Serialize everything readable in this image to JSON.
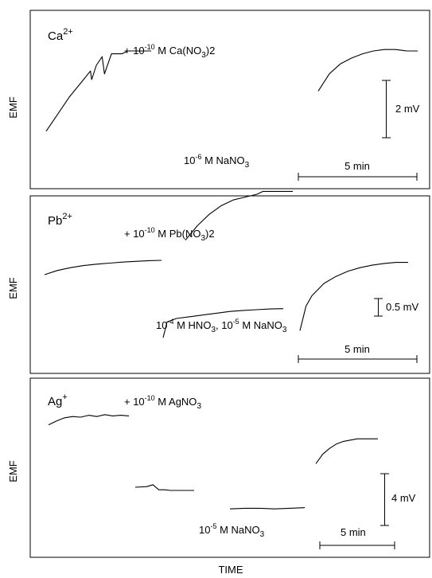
{
  "figure": {
    "x_axis_label": "TIME",
    "y_axis_label": "EMF"
  },
  "chart_data": [
    {
      "type": "line",
      "ion": {
        "base": "Ca",
        "sup": "2+"
      },
      "annotation_top": {
        "prefix": "+ 10",
        "exp": "-10",
        "middle": " M Ca(NO",
        "sub": "3",
        "suffix": ")2"
      },
      "annotation_bottom": {
        "prefix": "10",
        "exp": "-6",
        "middle": " M NaNO",
        "sub": "3",
        "suffix": ""
      },
      "scalebar_emf": "2 mV",
      "scalebar_time": "5 min",
      "series": [
        {
          "x": [
            0.0,
            1.0,
            2.0,
            3.0,
            3.8,
            3.9,
            4.3,
            4.8,
            5.0,
            5.6,
            6.5,
            7.0,
            8.0,
            9.0
          ],
          "y": [
            0.2,
            0.8,
            1.4,
            1.9,
            2.3,
            2.0,
            2.5,
            2.8,
            2.2,
            2.9,
            2.9,
            3.0,
            3.0,
            3.0
          ]
        },
        {
          "x": [
            0,
            1,
            2,
            3,
            4,
            5,
            6,
            6.5,
            7,
            8,
            9
          ],
          "y": [
            -3.6,
            -3.1,
            -2.7,
            -2.4,
            -2.2,
            -2.1,
            -2.0,
            -1.9,
            -1.9,
            -1.9,
            -1.9
          ]
        },
        {
          "x": [
            0,
            1,
            2,
            3,
            4,
            5,
            6,
            7,
            8,
            9
          ],
          "y": [
            1.6,
            2.2,
            2.55,
            2.75,
            2.9,
            3.0,
            3.05,
            3.05,
            3.0,
            3.0
          ]
        }
      ]
    },
    {
      "type": "line",
      "ion": {
        "base": "Pb",
        "sup": "2+"
      },
      "annotation_top": {
        "prefix": "+ 10",
        "exp": "-10",
        "middle": " M Pb(NO",
        "sub": "3",
        "suffix": ")2"
      },
      "annotation_bottom": {
        "prefix": "10",
        "exp": "-4",
        "middle": " M HNO",
        "sub": "3",
        "suffix": ", 10",
        "exp2": "-5",
        "middle2": " M NaNO",
        "sub2": "3"
      },
      "scalebar_emf": "0.5 mV",
      "scalebar_time": "5 min",
      "series": [
        {
          "x": [
            0,
            1,
            2,
            3,
            4,
            5,
            6,
            7,
            8,
            9
          ],
          "y": [
            0.0,
            0.12,
            0.2,
            0.26,
            0.3,
            0.33,
            0.36,
            0.38,
            0.4,
            0.41
          ]
        },
        {
          "x": [
            0,
            0.3,
            1,
            2,
            3,
            4,
            5,
            6,
            7,
            8,
            9
          ],
          "y": [
            -1.8,
            -1.35,
            -1.25,
            -1.2,
            -1.15,
            -1.1,
            -1.05,
            -1.02,
            -1.0,
            -0.98,
            -0.97
          ]
        },
        {
          "x": [
            0,
            0.5,
            1,
            2,
            3,
            4,
            5,
            6,
            7,
            8,
            9
          ],
          "y": [
            -1.6,
            -0.9,
            -0.6,
            -0.25,
            -0.05,
            0.1,
            0.2,
            0.27,
            0.32,
            0.35,
            0.35
          ]
        }
      ]
    },
    {
      "type": "line",
      "ion": {
        "base": "Ag",
        "sup": "+"
      },
      "annotation_top": {
        "prefix": "+ 10",
        "exp": "-10",
        "middle": " M AgNO",
        "sub": "3",
        "suffix": ""
      },
      "annotation_bottom": {
        "prefix": "10",
        "exp": "-5",
        "middle": " M NaNO",
        "sub": "3",
        "suffix": ""
      },
      "scalebar_emf": "4 mV",
      "scalebar_time": "5 min",
      "series": [
        {
          "x": [
            0,
            1,
            2,
            3,
            4,
            5,
            6,
            7,
            8,
            9,
            10
          ],
          "y": [
            0.8,
            1.4,
            1.9,
            2.1,
            2.0,
            2.3,
            2.1,
            2.4,
            2.2,
            2.3,
            2.2
          ]
        },
        {
          "x": [
            0,
            2,
            3,
            4,
            5,
            6,
            8,
            10
          ],
          "y": [
            -9.0,
            -8.9,
            -8.6,
            -9.4,
            -9.4,
            -9.5,
            -9.5,
            -9.5
          ]
        },
        {
          "x": [
            0,
            2,
            4,
            6,
            8,
            10
          ],
          "y": [
            -12.4,
            -12.3,
            -12.3,
            -12.4,
            -12.3,
            -12.2
          ]
        },
        {
          "x": [
            0,
            1,
            2,
            3,
            4,
            5,
            6,
            7,
            8,
            9
          ],
          "y": [
            -5.3,
            -3.8,
            -2.9,
            -2.2,
            -1.8,
            -1.6,
            -1.4,
            -1.4,
            -1.4,
            -1.4
          ]
        }
      ]
    }
  ]
}
